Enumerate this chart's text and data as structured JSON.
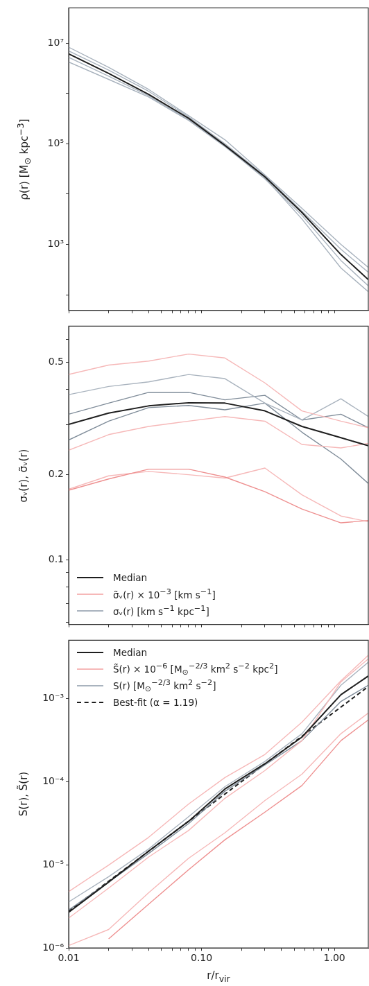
{
  "chart_data": [
    {
      "type": "line",
      "log": "xy",
      "ylabel": "ρ(r)   [M$_{⊙}$ kpc$^{−3}$]",
      "marker": "none",
      "tick_labels": "y",
      "x": [
        0.01,
        0.02,
        0.04,
        0.08,
        0.15,
        0.3,
        0.57,
        1.12,
        1.8
      ],
      "xlim": [
        0.01,
        1.8
      ],
      "xticks": [
        {
          "value": 0.01,
          "label": null
        },
        {
          "value": 0.02,
          "label": null
        },
        {
          "value": 0.03,
          "label": null
        },
        {
          "value": 0.04,
          "label": null
        },
        {
          "value": 0.05,
          "label": null
        },
        {
          "value": 0.06,
          "label": null
        },
        {
          "value": 0.07,
          "label": null
        },
        {
          "value": 0.08,
          "label": null
        },
        {
          "value": 0.09,
          "label": null
        },
        {
          "value": 0.1,
          "label": null
        },
        {
          "value": 0.2,
          "label": null
        },
        {
          "value": 0.3,
          "label": null
        },
        {
          "value": 0.4,
          "label": null
        },
        {
          "value": 0.5,
          "label": null
        },
        {
          "value": 0.6,
          "label": null
        },
        {
          "value": 0.7,
          "label": null
        },
        {
          "value": 0.8,
          "label": null
        },
        {
          "value": 0.9,
          "label": null
        },
        {
          "value": 1,
          "label": null
        }
      ],
      "ylim": [
        49,
        50000000
      ],
      "yticks": [
        {
          "value": 100,
          "label": null
        },
        {
          "value": 1000,
          "label": "10³"
        },
        {
          "value": 10000,
          "label": null
        },
        {
          "value": 100000,
          "label": "10⁵"
        },
        {
          "value": 1000000,
          "label": null
        },
        {
          "value": 10000000,
          "label": "10⁷"
        }
      ],
      "series": [
        {
          "color": "#1e1e1e",
          "values": [
            6100000,
            2500000,
            960000,
            320000,
            93000,
            22000,
            4300,
            630,
            200
          ]
        },
        {
          "color": "#a9b3be",
          "values": [
            8300000,
            3300000,
            1200000,
            360000,
            120000,
            24000,
            5200,
            1000,
            350
          ]
        },
        {
          "color": "#a9b3be",
          "values": [
            4200000,
            1900000,
            850000,
            290000,
            88000,
            21000,
            3200,
            340,
            115
          ]
        },
        {
          "color": "#a9b3be",
          "values": [
            7000000,
            2900000,
            1100000,
            340000,
            100000,
            23000,
            4600,
            800,
            280
          ]
        },
        {
          "color": "#a9b3be",
          "values": [
            5200000,
            2200000,
            900000,
            300000,
            90000,
            20000,
            3800,
            480,
            150
          ]
        }
      ]
    },
    {
      "type": "line",
      "log": "xy",
      "ylabel": "σᵥ(r), σ̃ᵥ(r)",
      "marker": "none",
      "tick_labels": "y",
      "legend": "bottom left",
      "x": [
        0.01,
        0.02,
        0.04,
        0.08,
        0.15,
        0.3,
        0.57,
        1.12,
        1.8
      ],
      "xlim": [
        0.01,
        1.8
      ],
      "xticks": [
        {
          "value": 0.01,
          "label": null
        },
        {
          "value": 0.02,
          "label": null
        },
        {
          "value": 0.03,
          "label": null
        },
        {
          "value": 0.04,
          "label": null
        },
        {
          "value": 0.05,
          "label": null
        },
        {
          "value": 0.06,
          "label": null
        },
        {
          "value": 0.07,
          "label": null
        },
        {
          "value": 0.08,
          "label": null
        },
        {
          "value": 0.09,
          "label": null
        },
        {
          "value": 0.1,
          "label": null
        },
        {
          "value": 0.2,
          "label": null
        },
        {
          "value": 0.3,
          "label": null
        },
        {
          "value": 0.4,
          "label": null
        },
        {
          "value": 0.5,
          "label": null
        },
        {
          "value": 0.6,
          "label": null
        },
        {
          "value": 0.7,
          "label": null
        },
        {
          "value": 0.8,
          "label": null
        },
        {
          "value": 0.9,
          "label": null
        },
        {
          "value": 1,
          "label": null
        }
      ],
      "ylim": [
        0.059,
        0.67
      ],
      "yticks": [
        {
          "value": 0.06,
          "label": null
        },
        {
          "value": 0.07,
          "label": null
        },
        {
          "value": 0.08,
          "label": null
        },
        {
          "value": 0.09,
          "label": null
        },
        0.1,
        0.2,
        {
          "value": 0.3,
          "label": null
        },
        {
          "value": 0.4,
          "label": null
        },
        0.5,
        {
          "value": 0.6,
          "label": null
        }
      ],
      "series": [
        {
          "name": "Median",
          "color": "#1e1e1e",
          "values": [
            0.301,
            0.33,
            0.35,
            0.359,
            0.358,
            0.336,
            0.296,
            0.27,
            0.253
          ]
        },
        {
          "name": "σ̃ᵥ(r) × 10$^{−3}$   [km s$^{−1}$]",
          "color": "#f6b8b8",
          "values": [
            0.452,
            0.488,
            0.504,
            0.534,
            0.517,
            0.422,
            0.336,
            0.309,
            0.293
          ]
        },
        {
          "color": "#ee9090",
          "values": [
            0.176,
            0.193,
            0.209,
            0.209,
            0.196,
            0.174,
            0.151,
            0.135,
            0.1376
          ]
        },
        {
          "color": "#f6b8b8",
          "values": [
            0.244,
            0.277,
            0.296,
            0.309,
            0.321,
            0.309,
            0.2556,
            0.2486,
            0.258
          ]
        },
        {
          "color": "#f6b8b8",
          "values": [
            0.1775,
            0.198,
            0.2053,
            0.1998,
            0.1944,
            0.211,
            0.1696,
            0.1427,
            0.1363
          ]
        },
        {
          "name": "σᵥ(r)   [km s$^{−1}$ kpc$^{−1}$]",
          "color": "#a9b3be",
          "values": [
            0.3835,
            0.41,
            0.4256,
            0.452,
            0.437,
            0.358,
            0.312,
            0.371,
            0.321
          ]
        },
        {
          "color": "#7f8c99",
          "values": [
            0.327,
            0.358,
            0.3906,
            0.3906,
            0.3677,
            0.3815,
            0.312,
            0.327,
            0.293
          ]
        },
        {
          "color": "#7f8c99",
          "values": [
            0.265,
            0.309,
            0.345,
            0.3513,
            0.339,
            0.358,
            0.2825,
            0.227,
            0.186
          ]
        }
      ]
    },
    {
      "type": "line",
      "log": "xy",
      "ylabel": "S(r), S̃(r)",
      "xlabel": "r/r$_{vir}$",
      "marker": "none",
      "legend": "top left",
      "x": [
        0.01,
        0.02,
        0.04,
        0.08,
        0.15,
        0.3,
        0.57,
        1.12,
        1.8
      ],
      "xlim": [
        0.01,
        1.8
      ],
      "xticks": [
        {
          "value": 0.01,
          "label": "0.01"
        },
        {
          "value": 0.02,
          "label": null
        },
        {
          "value": 0.03,
          "label": null
        },
        {
          "value": 0.04,
          "label": null
        },
        {
          "value": 0.05,
          "label": null
        },
        {
          "value": 0.06,
          "label": null
        },
        {
          "value": 0.07,
          "label": null
        },
        {
          "value": 0.08,
          "label": null
        },
        {
          "value": 0.09,
          "label": null
        },
        {
          "value": 0.1,
          "label": "0.10"
        },
        {
          "value": 0.2,
          "label": null
        },
        {
          "value": 0.3,
          "label": null
        },
        {
          "value": 0.4,
          "label": null
        },
        {
          "value": 0.5,
          "label": null
        },
        {
          "value": 0.6,
          "label": null
        },
        {
          "value": 0.7,
          "label": null
        },
        {
          "value": 0.8,
          "label": null
        },
        {
          "value": 0.9,
          "label": null
        },
        {
          "value": 1,
          "label": "1.00"
        }
      ],
      "ylim": [
        1e-06,
        0.005
      ],
      "yticks": [
        {
          "value": 1e-06,
          "label": "10⁻⁶"
        },
        {
          "value": 1e-05,
          "label": "10⁻⁵"
        },
        {
          "value": 0.0001,
          "label": "10⁻⁴"
        },
        {
          "value": 0.001,
          "label": "10⁻³"
        }
      ],
      "series": [
        {
          "name": "Median",
          "color": "#1e1e1e",
          "values": [
            2.69e-06,
            6.2e-06,
            1.46e-05,
            3.34e-05,
            8.15e-05,
            0.000164,
            0.000343,
            0.00111,
            0.00186
          ]
        },
        {
          "name": "S̃(r) × 10$^{−6}$ [M$_{⊙}$$^{−2/3}$ km$^{2}$ s$^{−2}$ kpc$^{2}$]",
          "color": "#f6b8b8",
          "values": [
            4.77e-06,
            9.93e-06,
            2.14e-05,
            5.39e-05,
            0.000112,
            0.000212,
            0.000519,
            0.00163,
            0.0033
          ]
        },
        {
          "color": "#ee9090",
          "values": [
            null,
            1.29e-06,
            3.36e-06,
            8.75e-06,
            2e-05,
            4.3e-05,
            8.98e-05,
            0.000311,
            0.000552
          ]
        },
        {
          "color": "#f6b8b8",
          "values": [
            1.07e-06,
            1.67e-06,
            4.62e-06,
            1.2e-05,
            2.43e-05,
            5.93e-05,
            0.000123,
            0.000377,
            0.000668
          ]
        },
        {
          "color": "#f6b8b8",
          "values": [
            2.29e-06,
            5.25e-06,
            1.24e-05,
            2.59e-05,
            6.3e-05,
            0.000136,
            0.000311,
            0.00158,
            0.00299
          ]
        },
        {
          "name": "S(r)   [M$_{⊙}$$^{−2/3}$ km$^{2}$ s$^{−2}$]",
          "color": "#a9b3be",
          "values": [
            3.58e-06,
            7.2e-06,
            1.55e-05,
            3.79e-05,
            8.7e-05,
            0.000175,
            0.000377,
            0.00144,
            0.00272
          ]
        },
        {
          "color": "#7f8c99",
          "values": [
            2.86e-06,
            6.2e-06,
            1.37e-05,
            3.13e-05,
            7.66e-05,
            0.000159,
            0.000311,
            0.00092,
            0.00144
          ]
        },
        {
          "name": "Best-fit (α = 1.19)",
          "color": "#1e1e1e",
          "line_style": "dashed",
          "x": [
            0.01,
            1.8
          ],
          "values": [
            2.77e-06,
            0.00139
          ]
        }
      ]
    }
  ]
}
